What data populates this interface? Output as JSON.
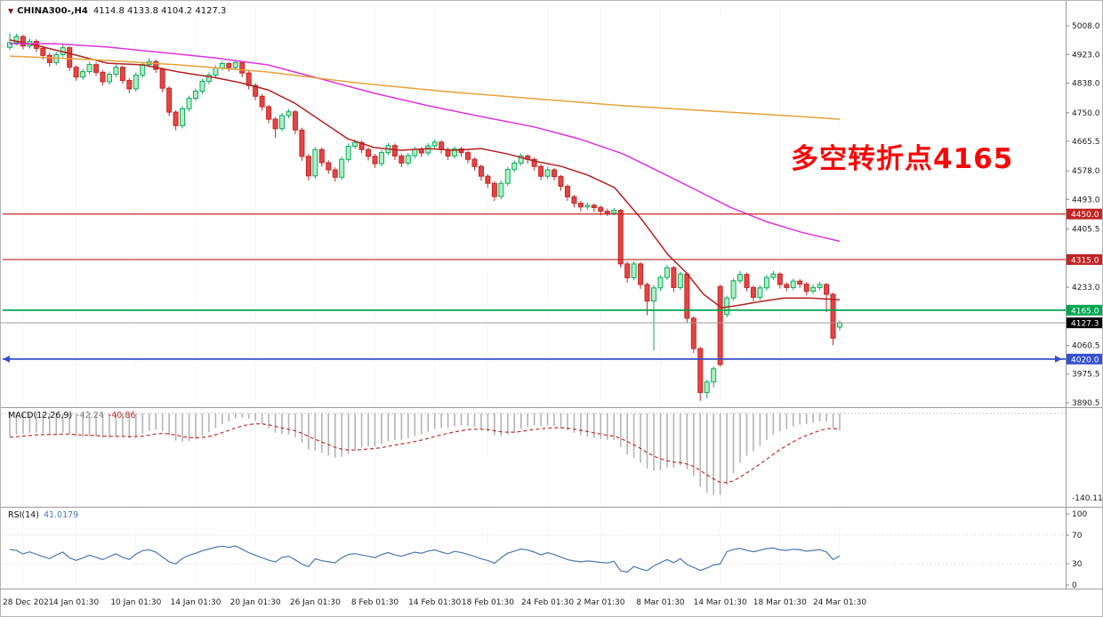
{
  "header": {
    "symbol_period": "CHINA300-,H4",
    "ohlc": "4114.8 4133.8 4104.2 4127.3"
  },
  "annotation": {
    "text": "多空转折点4165",
    "color": "#f70808"
  },
  "indicators": {
    "macd": {
      "label": "MACD(12,26,9)",
      "value_main": "-42.24",
      "value_signal": "-40.86",
      "color_main": "#808080",
      "color_signal": "#c03030",
      "scale_min_label": "-140.11",
      "fast": 12,
      "slow": 26,
      "signal": 9
    },
    "rsi": {
      "label": "RSI(14)",
      "value": "41.0179",
      "color": "#4a78b0",
      "period": 14
    }
  },
  "axes": {
    "price_ticks": [
      "5008.0",
      "4923.0",
      "4838.0",
      "4750.0",
      "4665.5",
      "4578.0",
      "4493.0",
      "4405.5",
      "4233.0",
      "4060.5",
      "3975.5",
      "3890.5"
    ],
    "macd_ticks": [
      "-140.11"
    ],
    "rsi_ticks": [
      "100",
      "70",
      "30",
      "0"
    ],
    "time_labels": [
      {
        "text": "28 Dec 2021",
        "i": 2
      },
      {
        "text": "4 Jan 01:30",
        "i": 10
      },
      {
        "text": "10 Jan 01:30",
        "i": 19
      },
      {
        "text": "14 Jan 01:30",
        "i": 28
      },
      {
        "text": "20 Jan 01:30",
        "i": 37
      },
      {
        "text": "26 Jan 01:30",
        "i": 46
      },
      {
        "text": "8 Feb 01:30",
        "i": 55
      },
      {
        "text": "14 Feb 01:30",
        "i": 64
      },
      {
        "text": "18 Feb 01:30",
        "i": 72
      },
      {
        "text": "24 Feb 01:30",
        "i": 81
      },
      {
        "text": "2 Mar 01:30",
        "i": 89
      },
      {
        "text": "8 Mar 01:30",
        "i": 98
      },
      {
        "text": "14 Mar 01:30",
        "i": 107
      },
      {
        "text": "18 Mar 01:30",
        "i": 116
      },
      {
        "text": "24 Mar 01:30",
        "i": 125
      }
    ]
  },
  "hlines": [
    {
      "price": 4450.0,
      "label": "4450.0",
      "color": "#c02424",
      "width": 1.2,
      "arrows": false
    },
    {
      "price": 4315.0,
      "label": "4315.0",
      "color": "#c02424",
      "width": 1.2,
      "arrows": false
    },
    {
      "price": 4165.0,
      "label": "4165.0",
      "color": "#00a651",
      "width": 1.7,
      "arrows": false
    },
    {
      "price": 4020.0,
      "label": "4020.0",
      "color": "#3550cc",
      "width": 1.7,
      "arrows": true
    }
  ],
  "current_price": {
    "value": 4127.3,
    "label": "4127.3",
    "badge_color": "#000000",
    "line_color": "#9c9c9c"
  },
  "colors": {
    "candle_up_fill": "#aef0c2",
    "candle_up_stroke": "#0faa5f",
    "candle_down_fill": "#e64444",
    "candle_down_stroke": "#c22727",
    "macd_hist": "#b4b4b4",
    "grid": "#ececec",
    "separator": "#9a9a9a"
  },
  "chart_data": {
    "type": "candlestick",
    "title": "CHINA300-,H4",
    "timeframe": "H4",
    "ylim": [
      3890.5,
      5008.0
    ],
    "panels": [
      "price",
      "MACD(12,26,9)",
      "RSI(14)"
    ],
    "candles": [
      [
        4944,
        4986,
        4936,
        4958
      ],
      [
        4958,
        4984,
        4950,
        4976
      ],
      [
        4976,
        4981,
        4938,
        4948
      ],
      [
        4948,
        4970,
        4940,
        4962
      ],
      [
        4962,
        4968,
        4930,
        4941
      ],
      [
        4941,
        4949,
        4908,
        4920
      ],
      [
        4920,
        4928,
        4887,
        4899
      ],
      [
        4899,
        4931,
        4891,
        4923
      ],
      [
        4923,
        4951,
        4915,
        4943
      ],
      [
        4943,
        4947,
        4874,
        4885
      ],
      [
        4885,
        4891,
        4845,
        4856
      ],
      [
        4856,
        4880,
        4848,
        4872
      ],
      [
        4872,
        4901,
        4864,
        4893
      ],
      [
        4893,
        4899,
        4860,
        4870
      ],
      [
        4870,
        4876,
        4831,
        4842
      ],
      [
        4842,
        4872,
        4834,
        4864
      ],
      [
        4864,
        4893,
        4856,
        4885
      ],
      [
        4885,
        4890,
        4836,
        4846
      ],
      [
        4846,
        4853,
        4808,
        4821
      ],
      [
        4821,
        4870,
        4813,
        4862
      ],
      [
        4862,
        4901,
        4854,
        4893
      ],
      [
        4893,
        4912,
        4884,
        4902
      ],
      [
        4902,
        4908,
        4868,
        4879
      ],
      [
        4879,
        4884,
        4811,
        4823
      ],
      [
        4823,
        4829,
        4740,
        4752
      ],
      [
        4752,
        4758,
        4698,
        4712
      ],
      [
        4712,
        4770,
        4704,
        4762
      ],
      [
        4762,
        4801,
        4754,
        4793
      ],
      [
        4793,
        4822,
        4785,
        4814
      ],
      [
        4814,
        4851,
        4806,
        4843
      ],
      [
        4843,
        4870,
        4835,
        4862
      ],
      [
        4862,
        4891,
        4854,
        4883
      ],
      [
        4883,
        4904,
        4875,
        4896
      ],
      [
        4896,
        4901,
        4872,
        4884
      ],
      [
        4884,
        4907,
        4876,
        4899
      ],
      [
        4899,
        4904,
        4856,
        4868
      ],
      [
        4868,
        4874,
        4819,
        4831
      ],
      [
        4831,
        4838,
        4787,
        4799
      ],
      [
        4799,
        4806,
        4756,
        4768
      ],
      [
        4768,
        4774,
        4719,
        4731
      ],
      [
        4731,
        4738,
        4676,
        4703
      ],
      [
        4703,
        4750,
        4695,
        4742
      ],
      [
        4742,
        4761,
        4734,
        4753
      ],
      [
        4753,
        4758,
        4686,
        4699
      ],
      [
        4699,
        4706,
        4608,
        4621
      ],
      [
        4621,
        4628,
        4549,
        4563
      ],
      [
        4563,
        4649,
        4555,
        4641
      ],
      [
        4641,
        4647,
        4590,
        4602
      ],
      [
        4602,
        4609,
        4569,
        4581
      ],
      [
        4581,
        4588,
        4546,
        4559
      ],
      [
        4559,
        4620,
        4551,
        4612
      ],
      [
        4612,
        4659,
        4604,
        4651
      ],
      [
        4651,
        4671,
        4643,
        4662
      ],
      [
        4662,
        4668,
        4630,
        4641
      ],
      [
        4641,
        4647,
        4609,
        4621
      ],
      [
        4621,
        4628,
        4587,
        4599
      ],
      [
        4599,
        4640,
        4591,
        4632
      ],
      [
        4632,
        4661,
        4624,
        4653
      ],
      [
        4653,
        4659,
        4610,
        4622
      ],
      [
        4622,
        4628,
        4589,
        4601
      ],
      [
        4601,
        4631,
        4593,
        4623
      ],
      [
        4623,
        4650,
        4615,
        4642
      ],
      [
        4642,
        4648,
        4619,
        4631
      ],
      [
        4631,
        4660,
        4623,
        4652
      ],
      [
        4652,
        4671,
        4644,
        4663
      ],
      [
        4663,
        4669,
        4629,
        4641
      ],
      [
        4641,
        4647,
        4610,
        4622
      ],
      [
        4622,
        4651,
        4614,
        4643
      ],
      [
        4643,
        4649,
        4620,
        4632
      ],
      [
        4632,
        4638,
        4600,
        4612
      ],
      [
        4612,
        4618,
        4579,
        4591
      ],
      [
        4591,
        4597,
        4549,
        4562
      ],
      [
        4562,
        4568,
        4528,
        4541
      ],
      [
        4541,
        4547,
        4489,
        4502
      ],
      [
        4502,
        4549,
        4494,
        4541
      ],
      [
        4541,
        4590,
        4533,
        4582
      ],
      [
        4582,
        4609,
        4574,
        4601
      ],
      [
        4601,
        4630,
        4593,
        4622
      ],
      [
        4622,
        4627,
        4599,
        4612
      ],
      [
        4612,
        4618,
        4579,
        4591
      ],
      [
        4591,
        4597,
        4550,
        4562
      ],
      [
        4562,
        4589,
        4554,
        4581
      ],
      [
        4581,
        4586,
        4549,
        4561
      ],
      [
        4561,
        4566,
        4519,
        4532
      ],
      [
        4532,
        4538,
        4489,
        4501
      ],
      [
        4501,
        4507,
        4469,
        4482
      ],
      [
        4482,
        4489,
        4458,
        4471
      ],
      [
        4471,
        4484,
        4463,
        4476
      ],
      [
        4476,
        4481,
        4456,
        4469
      ],
      [
        4469,
        4475,
        4446,
        4458
      ],
      [
        4458,
        4466,
        4444,
        4452
      ],
      [
        4452,
        4468,
        4446,
        4461
      ],
      [
        4461,
        4465,
        4291,
        4302
      ],
      [
        4302,
        4309,
        4246,
        4261
      ],
      [
        4261,
        4310,
        4253,
        4302
      ],
      [
        4302,
        4307,
        4228,
        4241
      ],
      [
        4241,
        4247,
        4150,
        4192
      ],
      [
        4192,
        4239,
        4046,
        4231
      ],
      [
        4231,
        4269,
        4222,
        4262
      ],
      [
        4262,
        4298,
        4254,
        4291
      ],
      [
        4291,
        4296,
        4219,
        4232
      ],
      [
        4232,
        4279,
        4224,
        4272
      ],
      [
        4272,
        4277,
        4128,
        4141
      ],
      [
        4141,
        4147,
        4038,
        4051
      ],
      [
        4051,
        4056,
        3896,
        3921
      ],
      [
        3921,
        3959,
        3904,
        3952
      ],
      [
        3952,
        3998,
        3936,
        3991
      ],
      [
        4235,
        4241,
        3997,
        4004
      ],
      [
        4152,
        4208,
        4143,
        4201
      ],
      [
        4201,
        4259,
        4193,
        4252
      ],
      [
        4252,
        4281,
        4244,
        4271
      ],
      [
        4271,
        4276,
        4221,
        4232
      ],
      [
        4232,
        4238,
        4191,
        4203
      ],
      [
        4203,
        4238,
        4195,
        4231
      ],
      [
        4231,
        4269,
        4223,
        4262
      ],
      [
        4262,
        4281,
        4254,
        4272
      ],
      [
        4272,
        4277,
        4229,
        4241
      ],
      [
        4241,
        4247,
        4221,
        4232
      ],
      [
        4232,
        4258,
        4224,
        4251
      ],
      [
        4251,
        4257,
        4231,
        4242
      ],
      [
        4242,
        4248,
        4209,
        4221
      ],
      [
        4221,
        4241,
        4213,
        4232
      ],
      [
        4232,
        4249,
        4224,
        4241
      ],
      [
        4241,
        4246,
        4159,
        4212
      ],
      [
        4212,
        4217,
        4061,
        4082
      ],
      [
        4114.8,
        4133.8,
        4104.2,
        4127.3
      ]
    ],
    "moving_averages": [
      {
        "name": "ma-fast",
        "color": "#b22222",
        "points": [
          [
            0,
            4966
          ],
          [
            4,
            4950
          ],
          [
            9.4,
            4924
          ],
          [
            14.7,
            4897
          ],
          [
            20.1,
            4892
          ],
          [
            25.5,
            4871
          ],
          [
            30.8,
            4855
          ],
          [
            34.8,
            4839
          ],
          [
            38.9,
            4818
          ],
          [
            42.9,
            4779
          ],
          [
            46.9,
            4726
          ],
          [
            50.9,
            4673
          ],
          [
            54.9,
            4647
          ],
          [
            59,
            4639
          ],
          [
            63,
            4644
          ],
          [
            67,
            4639
          ],
          [
            71,
            4644
          ],
          [
            75,
            4628
          ],
          [
            79,
            4607
          ],
          [
            83.1,
            4591
          ],
          [
            87.1,
            4565
          ],
          [
            91.1,
            4528
          ],
          [
            95.1,
            4436
          ],
          [
            99.1,
            4330
          ],
          [
            101.8,
            4278
          ],
          [
            104.5,
            4212
          ],
          [
            107.2,
            4172
          ],
          [
            109.9,
            4180
          ],
          [
            113.2,
            4191
          ],
          [
            116.6,
            4201
          ],
          [
            120.6,
            4201
          ],
          [
            125,
            4196
          ]
        ]
      },
      {
        "name": "ma-mid",
        "color": "#dd33dd",
        "points": [
          [
            0,
            4955
          ],
          [
            6.7,
            4955
          ],
          [
            14.7,
            4945
          ],
          [
            22.8,
            4929
          ],
          [
            30.8,
            4913
          ],
          [
            38.9,
            4892
          ],
          [
            46.9,
            4850
          ],
          [
            54.9,
            4808
          ],
          [
            63,
            4771
          ],
          [
            71,
            4739
          ],
          [
            79,
            4708
          ],
          [
            85.7,
            4673
          ],
          [
            92.4,
            4628
          ],
          [
            97.8,
            4576
          ],
          [
            103.2,
            4523
          ],
          [
            108.5,
            4470
          ],
          [
            113.9,
            4428
          ],
          [
            119.2,
            4396
          ],
          [
            125,
            4369
          ]
        ]
      },
      {
        "name": "ma-slow",
        "color": "#e6a23c",
        "points": [
          [
            0,
            4918
          ],
          [
            12,
            4908
          ],
          [
            25.5,
            4892
          ],
          [
            38.9,
            4871
          ],
          [
            52.2,
            4839
          ],
          [
            65.7,
            4813
          ],
          [
            79,
            4792
          ],
          [
            92.4,
            4771
          ],
          [
            105.8,
            4755
          ],
          [
            115.2,
            4744
          ],
          [
            125,
            4731
          ]
        ]
      }
    ]
  }
}
